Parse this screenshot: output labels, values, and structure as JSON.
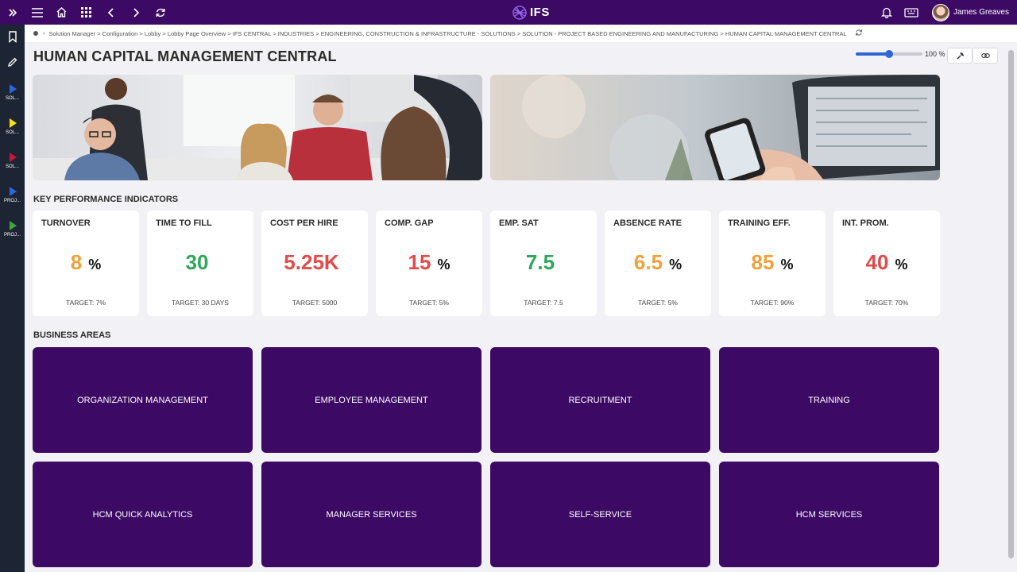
{
  "app": {
    "logo_text": "IFS",
    "user_name": "James Greaves",
    "icons": [
      "expand-icon",
      "menu-icon",
      "home-icon",
      "apps-grid-icon",
      "back-icon",
      "forward-icon",
      "refresh-icon",
      "bell-icon",
      "keyboard-icon"
    ]
  },
  "sidebar": {
    "items": [
      {
        "label": "SOL...",
        "color": "#2e66d8"
      },
      {
        "label": "SOL...",
        "color": "#f2e21a"
      },
      {
        "label": "SOL...",
        "color": "#c0193c"
      },
      {
        "label": "PROJ...",
        "color": "#2e66d8"
      },
      {
        "label": "PROJ...",
        "color": "#3fa33f"
      }
    ]
  },
  "breadcrumb": {
    "text": "Solution Manager > Configuration > Lobby > Lobby Page Overview > IFS CENTRAL > INDUSTRIES > ENGINEERING, CONSTRUCTION & INFRASTRUCTURE - SOLUTIONS > SOLUTION - PROJECT BASED ENGINEERING AND MANUFACTURING > HUMAN CAPITAL MANAGEMENT CENTRAL"
  },
  "page": {
    "title": "HUMAN CAPITAL MANAGEMENT CENTRAL",
    "zoom_label": "100 %",
    "zoom_fraction": 0.5
  },
  "kpi": {
    "section_label": "KEY PERFORMANCE INDICATORS",
    "cards": [
      {
        "title": "TURNOVER",
        "value": "8",
        "unit": "%",
        "target": "TARGET: 7%",
        "color": "#f0a13a"
      },
      {
        "title": "TIME TO FILL",
        "value": "30",
        "unit": "",
        "target": "TARGET: 30 DAYS",
        "color": "#2ea85a"
      },
      {
        "title": "COST PER HIRE",
        "value": "5.25K",
        "unit": "",
        "target": "TARGET: 5000",
        "color": "#e04b4b"
      },
      {
        "title": "COMP. GAP",
        "value": "15",
        "unit": "%",
        "target": "TARGET: 5%",
        "color": "#e04b4b"
      },
      {
        "title": "EMP. SAT",
        "value": "7.5",
        "unit": "",
        "target": "TARGET: 7.5",
        "color": "#2ea85a"
      },
      {
        "title": "ABSENCE RATE",
        "value": "6.5",
        "unit": "%",
        "target": "TARGET: 5%",
        "color": "#f0a13a"
      },
      {
        "title": "TRAINING EFF.",
        "value": "85",
        "unit": "%",
        "target": "TARGET: 90%",
        "color": "#f0a13a"
      },
      {
        "title": "INT. PROM.",
        "value": "40",
        "unit": "%",
        "target": "TARGET: 70%",
        "color": "#e04b4b"
      }
    ]
  },
  "business_areas": {
    "section_label": "BUSINESS AREAS",
    "tiles": [
      "ORGANIZATION MANAGEMENT",
      "EMPLOYEE MANAGEMENT",
      "RECRUITMENT",
      "TRAINING",
      "HCM QUICK ANALYTICS",
      "MANAGER SERVICES",
      "SELF-SERVICE",
      "HCM SERVICES"
    ]
  }
}
